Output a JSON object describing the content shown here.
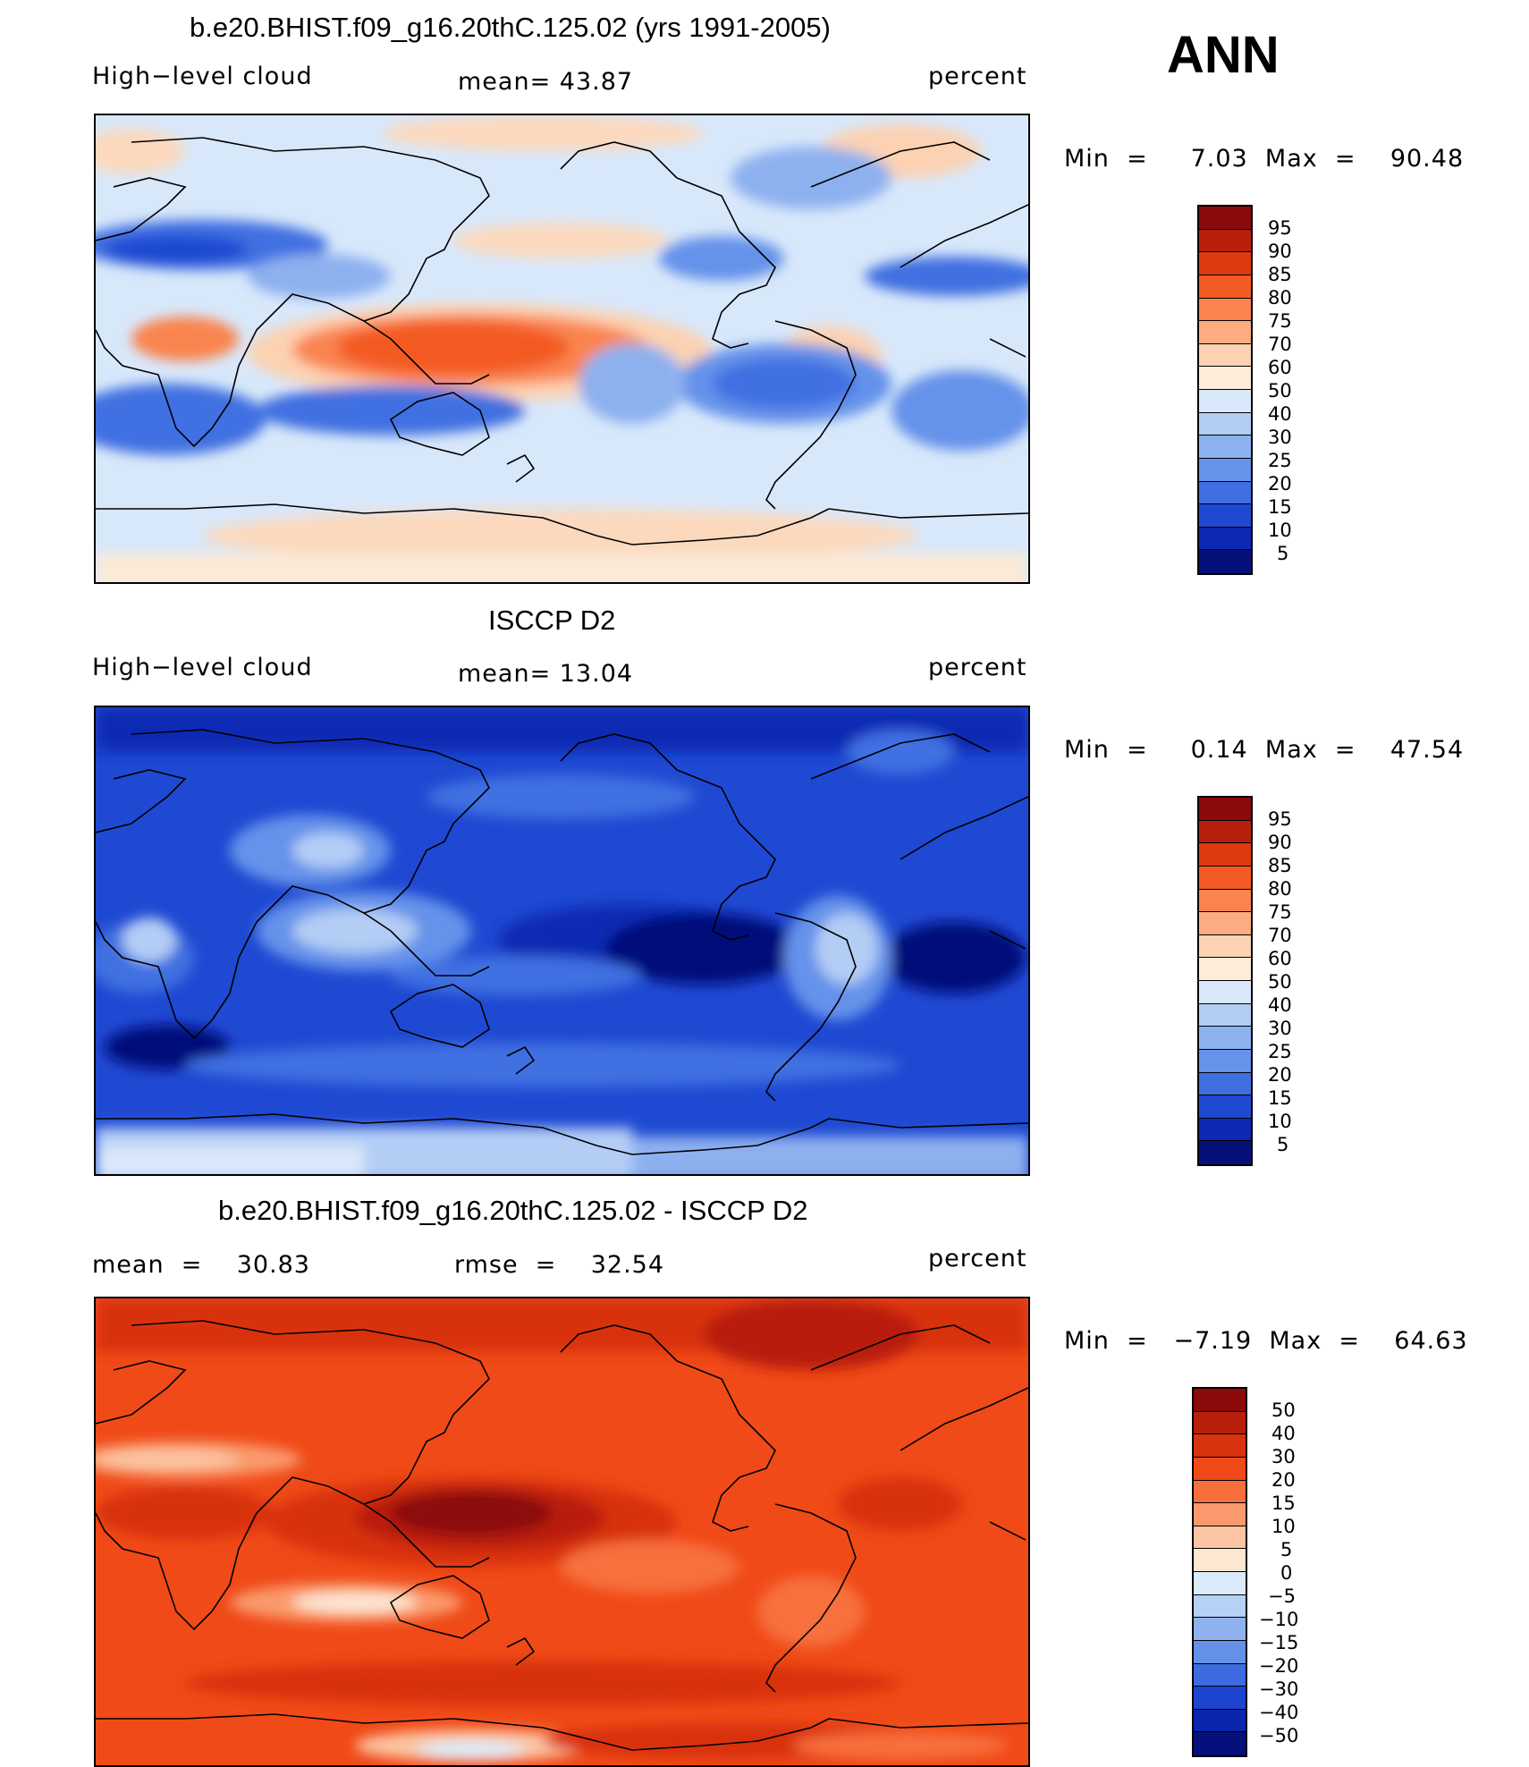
{
  "season": "ANN",
  "panels": [
    {
      "title": "b.e20.BHIST.f09_g16.20thC.125.02 (yrs 1991-2005)",
      "left_label": "High−level cloud",
      "center_label": "mean=   43.87",
      "right_label": "percent",
      "minmax": "Min  =     7.03  Max  =    90.48",
      "colorbar": {
        "levels": [
          "95",
          "90",
          "85",
          "80",
          "75",
          "70",
          "60",
          "50",
          "40",
          "30",
          "25",
          "20",
          "15",
          "10",
          "5"
        ],
        "colors": [
          "#8b0a0a",
          "#b81f0b",
          "#de3a10",
          "#f35a23",
          "#fa8450",
          "#fdab80",
          "#fcd2b2",
          "#fcecd9",
          "#d9e8fa",
          "#b3cdf5",
          "#8db0ef",
          "#6592ea",
          "#3f6fe1",
          "#1f49d2",
          "#0d29b4",
          "#06107a"
        ]
      },
      "fill": "model"
    },
    {
      "title": "ISCCP D2",
      "left_label": "High−level cloud",
      "center_label": "mean=   13.04",
      "right_label": "percent",
      "minmax": "Min  =     0.14  Max  =    47.54",
      "colorbar": {
        "levels": [
          "95",
          "90",
          "85",
          "80",
          "75",
          "70",
          "60",
          "50",
          "40",
          "30",
          "25",
          "20",
          "15",
          "10",
          "5"
        ],
        "colors": [
          "#8b0a0a",
          "#b81f0b",
          "#de3a10",
          "#f35a23",
          "#fa8450",
          "#fdab80",
          "#fcd2b2",
          "#fcecd9",
          "#d9e8fa",
          "#b3cdf5",
          "#8db0ef",
          "#6592ea",
          "#3f6fe1",
          "#1f49d2",
          "#0d29b4",
          "#06107a"
        ]
      },
      "fill": "obs"
    },
    {
      "title": "b.e20.BHIST.f09_g16.20thC.125.02 - ISCCP D2",
      "left_label": "mean  =    30.83",
      "center_label": "rmse  =    32.54",
      "right_label": "percent",
      "minmax": "Min  =   −7.19  Max  =    64.63",
      "colorbar": {
        "levels": [
          "50",
          "40",
          "30",
          "20",
          "15",
          "10",
          "5",
          "0",
          "−5",
          "−10",
          "−15",
          "−20",
          "−30",
          "−40",
          "−50"
        ],
        "colors": [
          "#8b0a0a",
          "#b81f0b",
          "#d8330e",
          "#f04a18",
          "#f7703c",
          "#fa9a6c",
          "#fcc4a2",
          "#fde6d2",
          "#dcebfb",
          "#b7d0f6",
          "#8fb2ef",
          "#6590e8",
          "#3d6be0",
          "#1d44cf",
          "#0b26ae",
          "#06107a"
        ]
      },
      "fill": "diff"
    }
  ]
}
